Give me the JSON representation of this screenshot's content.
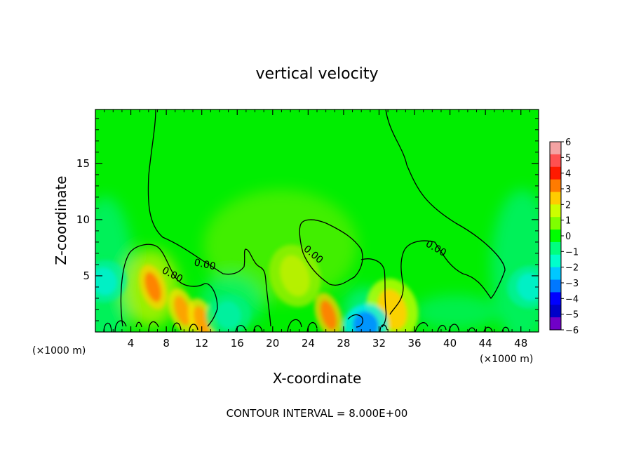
{
  "chart_data": {
    "type": "heatmap",
    "title": "vertical velocity",
    "xlabel": "X-coordinate",
    "ylabel": "Z-coordinate",
    "x_unit_left": "(×1000 m)",
    "x_unit_right": "(×1000 m)",
    "footer": "CONTOUR INTERVAL = 8.000E+00",
    "xlim": [
      0,
      50
    ],
    "ylim": [
      0,
      19.8
    ],
    "x_ticks": [
      4,
      8,
      12,
      16,
      20,
      24,
      28,
      32,
      36,
      40,
      44,
      48
    ],
    "y_ticks": [
      5,
      10,
      15
    ],
    "contour_label": "0.00",
    "colorbar": {
      "min": -6,
      "max": 6,
      "labels": [
        "6",
        "5",
        "4",
        "3",
        "2",
        "1",
        "0",
        "−1",
        "−2",
        "−3",
        "−4",
        "−5",
        "−6"
      ],
      "colors": [
        "#f4a3a3",
        "#ff5050",
        "#ff1a00",
        "#ff7b00",
        "#ffcc00",
        "#ccff00",
        "#7fff00",
        "#00ff00",
        "#00ff7f",
        "#00ffcc",
        "#00c8ff",
        "#0078ff",
        "#0000ff",
        "#0000c8",
        "#7000c8"
      ]
    },
    "features": [
      {
        "kind": "updraft",
        "x": 6.5,
        "z": 4.0,
        "value": 3.0
      },
      {
        "kind": "updraft",
        "x": 9.8,
        "z": 1.9,
        "value": 2.5
      },
      {
        "kind": "updraft",
        "x": 12.0,
        "z": 1.0,
        "value": 2.0
      },
      {
        "kind": "updraft",
        "x": 26.3,
        "z": 1.5,
        "value": 3.0
      },
      {
        "kind": "updraft",
        "x": 22.5,
        "z": 5.0,
        "value": 1.0
      },
      {
        "kind": "updraft",
        "x": 33.5,
        "z": 2.0,
        "value": 1.5
      },
      {
        "kind": "downdraft",
        "x": 1.0,
        "z": 4.5,
        "value": -1.5
      },
      {
        "kind": "downdraft",
        "x": 49.0,
        "z": 4.0,
        "value": -1.5
      },
      {
        "kind": "downdraft",
        "x": 15.0,
        "z": 1.5,
        "value": -1.0
      },
      {
        "kind": "downdraft",
        "x": 30.5,
        "z": 0.6,
        "value": -3.0
      }
    ]
  }
}
